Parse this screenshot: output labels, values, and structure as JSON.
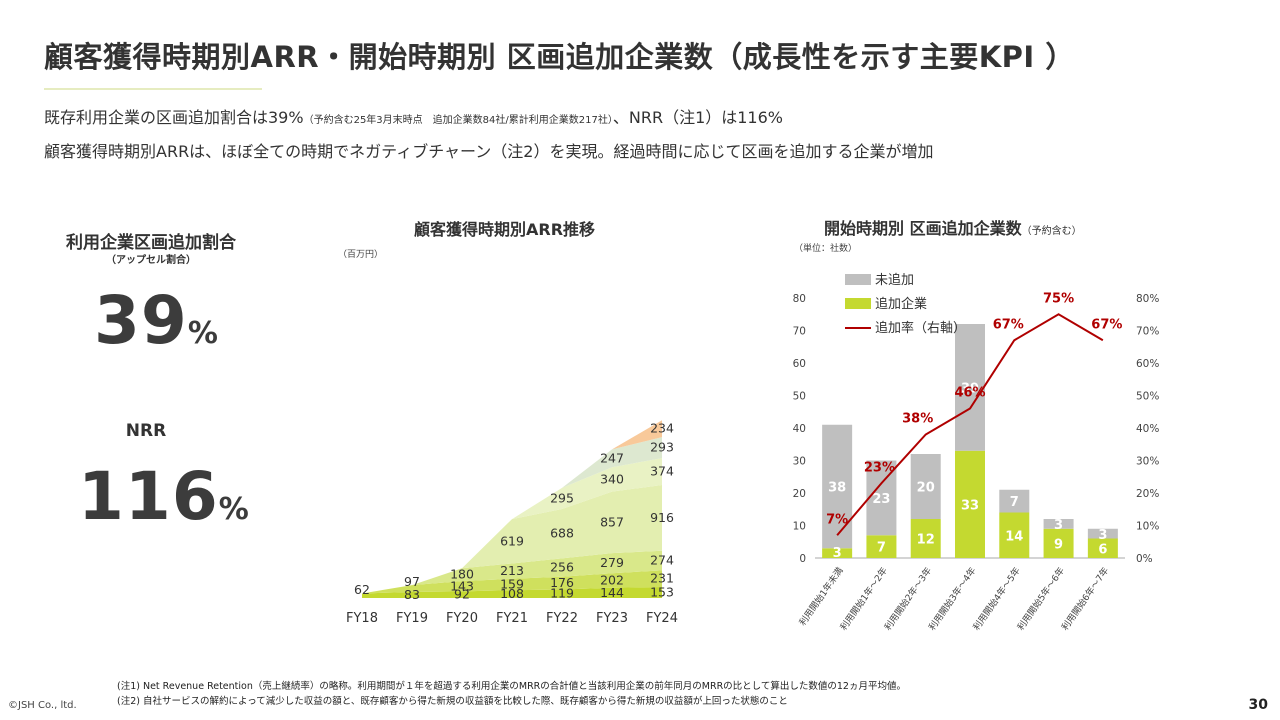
{
  "header": {
    "title": "顧客獲得時期別ARR・開始時期別 区画追加企業数（成長性を示す主要KPI ）",
    "line1_main": "既存利用企業の区画追加割合は39%",
    "line1_note_a": "（予約含む25年3月末時点　",
    "line1_note_b": "追加企業数84社/累計利用企業数217社）",
    "line1_tail": "、NRR（注1）は116%",
    "line2": "顧客獲得時期別ARRは、ほぼ全ての時期でネガティブチャーン（注2）を実現。経過時間に応じて区画を追加する企業が増加"
  },
  "kpi": {
    "upsell_label": "利用企業区画追加割合",
    "upsell_sublabel": "（アップセル割合）",
    "upsell_value": "39",
    "upsell_unit": "%",
    "nrr_label": "NRR",
    "nrr_value": "116",
    "nrr_unit": "%"
  },
  "arr_chart": {
    "title": "顧客獲得時期別ARR推移",
    "unit": "（百万円）"
  },
  "bar_chart": {
    "title": "開始時期別 区画追加企業数",
    "title_note": "（予約含む）",
    "unit": "（単位：社数）"
  },
  "colors": {
    "arr_layers": [
      "#c4d930",
      "#cfe05d",
      "#d9e88a",
      "#e3eeb0",
      "#e9f2c4",
      "#dde8d0",
      "#f8c99a",
      "#a9c8e8"
    ],
    "bar_gray": "#bfbfbf",
    "bar_green": "#c4d930",
    "line_red": "#b00000"
  },
  "chart_data": [
    {
      "type": "area",
      "title": "顧客獲得時期別ARR推移",
      "unit": "（百万円）",
      "x": [
        "FY18",
        "FY19",
        "FY20",
        "FY21",
        "FY22",
        "FY23",
        "FY24"
      ],
      "series": [
        {
          "values": [
            62,
            83,
            92,
            108,
            119,
            144,
            153
          ]
        },
        {
          "values": [
            null,
            97,
            143,
            159,
            176,
            202,
            231
          ]
        },
        {
          "values": [
            null,
            null,
            180,
            213,
            256,
            279,
            274
          ]
        },
        {
          "values": [
            null,
            null,
            null,
            619,
            688,
            857,
            916
          ]
        },
        {
          "values": [
            null,
            null,
            null,
            null,
            295,
            340,
            374
          ]
        },
        {
          "values": [
            null,
            null,
            null,
            null,
            null,
            247,
            293
          ]
        },
        {
          "values": [
            null,
            null,
            null,
            null,
            null,
            null,
            234
          ]
        }
      ]
    },
    {
      "type": "bar",
      "title": "開始時期別 区画追加企業数",
      "unit": "（単位：社数）",
      "categories": [
        "利用開始1年未満",
        "利用開始1年～2年",
        "利用開始2年～3年",
        "利用開始3年～4年",
        "利用開始4年～5年",
        "利用開始5年～6年",
        "利用開始6年～7年"
      ],
      "series": [
        {
          "name": "追加企業",
          "values": [
            3,
            7,
            12,
            33,
            14,
            9,
            6
          ]
        },
        {
          "name": "未追加",
          "values": [
            38,
            23,
            20,
            39,
            7,
            3,
            3
          ]
        },
        {
          "name": "追加率（右軸）",
          "values": [
            7,
            23,
            38,
            46,
            67,
            75,
            67
          ],
          "axis": "right"
        }
      ],
      "line_labels": [
        "7%",
        "23%",
        "38%",
        "46%",
        "67%",
        "75%",
        "67%"
      ],
      "ylim": [
        0,
        80
      ],
      "yticks": [
        "0",
        "10",
        "20",
        "30",
        "40",
        "50",
        "60",
        "70",
        "80"
      ],
      "y2lim": [
        0,
        80
      ],
      "y2ticks": [
        "0%",
        "10%",
        "20%",
        "30%",
        "40%",
        "50%",
        "60%",
        "70%",
        "80%"
      ],
      "legend": "top-left"
    }
  ],
  "footer": {
    "note1": "(注1) Net Revenue Retention（売上継続率）の略称。利用期間が１年を超過する利用企業のMRRの合計値と当該利用企業の前年同月のMRRの比として算出した数値の12ヵ月平均値。",
    "note2": "(注2) 自社サービスの解約によって減少した収益の額と、既存顧客から得た新規の収益額を比較した際、既存顧客から得た新規の収益額が上回った状態のこと",
    "copyright": "©JSH Co., ltd.",
    "page": "30"
  }
}
